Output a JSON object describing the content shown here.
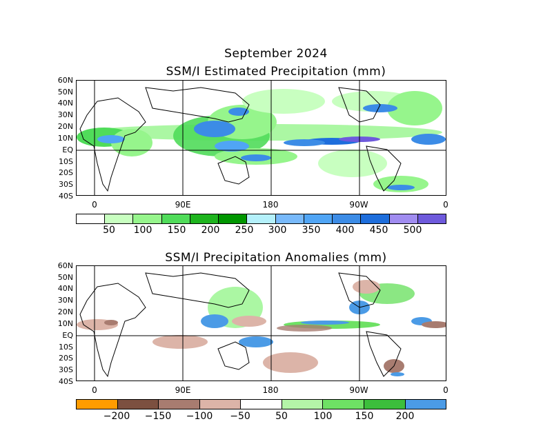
{
  "title_month": "September 2024",
  "panel1": {
    "title": "SSM/I Estimated Precipitation (mm)",
    "lat_labels": [
      "60N",
      "50N",
      "40N",
      "30N",
      "20N",
      "10N",
      "EQ",
      "10S",
      "20S",
      "30S",
      "40S"
    ],
    "lon_labels": [
      "0",
      "90E",
      "180",
      "90W",
      "0"
    ],
    "colorbar": {
      "colors": [
        "#ffffff",
        "#c8ffc0",
        "#96f58c",
        "#50dc5a",
        "#1eb41e",
        "#009600",
        "#b4f0fa",
        "#78b9fa",
        "#50a5f5",
        "#3c8ce6",
        "#1e6edc",
        "#a08cf0",
        "#6e5adc"
      ],
      "labels": [
        "50",
        "100",
        "150",
        "200",
        "250",
        "300",
        "350",
        "400",
        "450",
        "500"
      ]
    }
  },
  "panel2": {
    "title": "SSM/I Precipitation Anomalies (mm)",
    "lat_labels": [
      "60N",
      "50N",
      "40N",
      "30N",
      "20N",
      "10N",
      "EQ",
      "10S",
      "20S",
      "30S",
      "40S"
    ],
    "lon_labels": [
      "0",
      "90E",
      "180",
      "90W",
      "0"
    ],
    "colorbar": {
      "colors": [
        "#ff9c00",
        "#7c5040",
        "#a87c70",
        "#dcb4a8",
        "#ffffff",
        "#b4f5a8",
        "#6ee164",
        "#3cbe3c",
        "#4b9be6"
      ],
      "labels": [
        "-200",
        "-150",
        "-100",
        "-50",
        "50",
        "100",
        "150",
        "200"
      ]
    }
  }
}
